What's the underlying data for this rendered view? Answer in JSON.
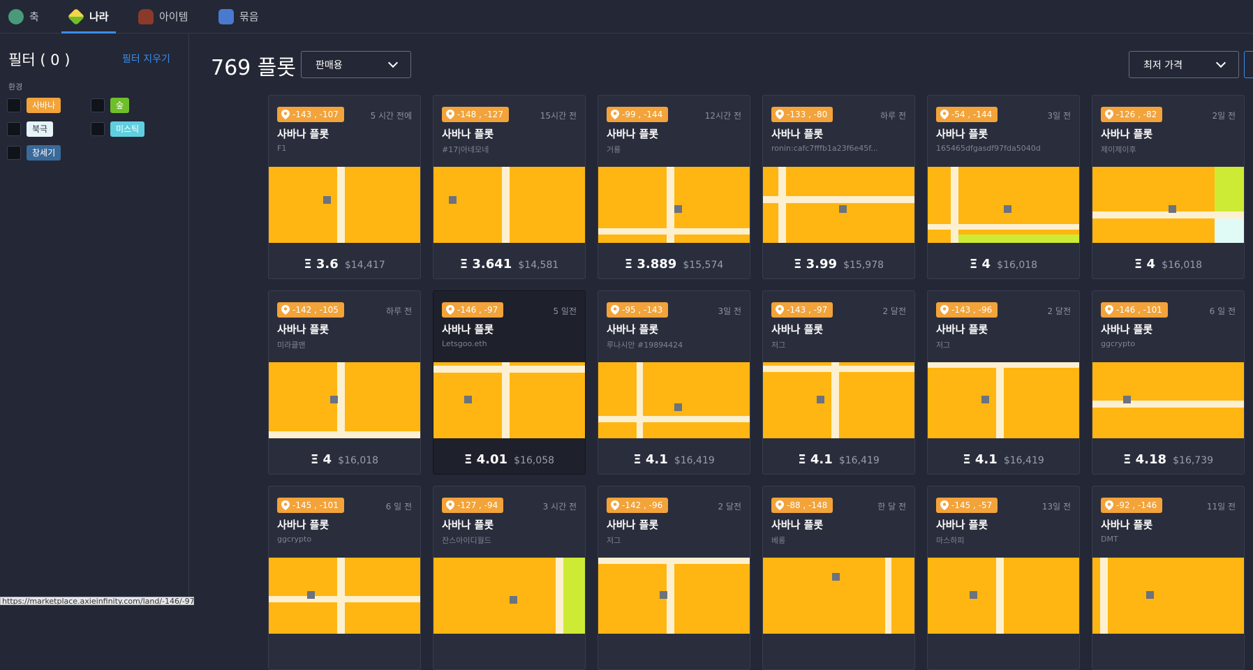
{
  "nav": {
    "tabs": [
      {
        "label": "축",
        "icon": "axie-icon",
        "color": "#4a9a7a"
      },
      {
        "label": "나라",
        "icon": "land-icon",
        "color": "#e6c13a",
        "active": true
      },
      {
        "label": "아이템",
        "icon": "item-icon",
        "color": "#8a3a2a"
      },
      {
        "label": "묶음",
        "icon": "bundle-icon",
        "color": "#4a7ad0"
      }
    ]
  },
  "sidebar": {
    "title": "필터 ( 0 )",
    "clear_label": "필터 지우기",
    "env_label": "환경",
    "envs": [
      {
        "label": "사바나",
        "bg": "#f2a33a",
        "fg": "#ffffff"
      },
      {
        "label": "숲",
        "bg": "#6fbf2a",
        "fg": "#ffffff"
      },
      {
        "label": "북극",
        "bg": "#e6f4f7",
        "fg": "#2a2d3c"
      },
      {
        "label": "미스틱",
        "bg": "#5fcfe0",
        "fg": "#ffffff"
      },
      {
        "label": "창세기",
        "bg": "#3a6a9a",
        "fg": "#ffffff"
      }
    ]
  },
  "main": {
    "count_title": "769 플롯",
    "sale_select": "판매용",
    "sort_select": "최저 가격"
  },
  "cards": [
    {
      "coord": "-143 , -107",
      "ago": "5 시간 전에",
      "title": "사바나 플롯",
      "owner": "F1",
      "eth": "Ξ 3.6",
      "usd": "$14,417"
    },
    {
      "coord": "-148 , -127",
      "ago": "15시간 전",
      "title": "사바나 플롯",
      "owner": "#17|아네모네",
      "eth": "Ξ 3.641",
      "usd": "$14,581"
    },
    {
      "coord": "-99 , -144",
      "ago": "12시간 전",
      "title": "사바나 플롯",
      "owner": "거룡",
      "eth": "Ξ 3.889",
      "usd": "$15,574"
    },
    {
      "coord": "-133 , -80",
      "ago": "하루 전",
      "title": "사바나 플롯",
      "owner": "ronin:cafc7fffb1a23f6e45f...",
      "eth": "Ξ 3.99",
      "usd": "$15,978"
    },
    {
      "coord": "-54 , -144",
      "ago": "3일 전",
      "title": "사바나 플롯",
      "owner": "165465dfgasdf97fda5040d",
      "eth": "Ξ 4",
      "usd": "$16,018"
    },
    {
      "coord": "-126 , -82",
      "ago": "2일 전",
      "title": "사바나 플롯",
      "owner": "제이제이후",
      "eth": "Ξ 4",
      "usd": "$16,018"
    },
    {
      "coord": "-142 , -105",
      "ago": "하루 전",
      "title": "사바나 플롯",
      "owner": "미라클맨",
      "eth": "Ξ 4",
      "usd": "$16,018"
    },
    {
      "coord": "-146 , -97",
      "ago": "5 일전",
      "title": "사바나 플롯",
      "owner": "Letsgoo.eth",
      "eth": "Ξ 4.01",
      "usd": "$16,058"
    },
    {
      "coord": "-95 , -143",
      "ago": "3일 전",
      "title": "사바나 플롯",
      "owner": "루나시안 #19894424",
      "eth": "Ξ 4.1",
      "usd": "$16,419"
    },
    {
      "coord": "-143 , -97",
      "ago": "2 달전",
      "title": "사바나 플롯",
      "owner": "저그",
      "eth": "Ξ 4.1",
      "usd": "$16,419"
    },
    {
      "coord": "-143 , -96",
      "ago": "2 달전",
      "title": "사바나 플롯",
      "owner": "저그",
      "eth": "Ξ 4.1",
      "usd": "$16,419"
    },
    {
      "coord": "-146 , -101",
      "ago": "6 일 전",
      "title": "사바나 플롯",
      "owner": "ggcrypto",
      "eth": "Ξ 4.18",
      "usd": "$16,739"
    },
    {
      "coord": "-145 , -101",
      "ago": "6 일 전",
      "title": "사바나 플롯",
      "owner": "ggcrypto",
      "eth": "",
      "usd": ""
    },
    {
      "coord": "-127 , -94",
      "ago": "3 시간 전",
      "title": "사바나 플롯",
      "owner": "잔스아이디월드",
      "eth": "",
      "usd": ""
    },
    {
      "coord": "-142 , -96",
      "ago": "2 달전",
      "title": "사바나 플롯",
      "owner": "저그",
      "eth": "",
      "usd": ""
    },
    {
      "coord": "-88 , -148",
      "ago": "한 달 전",
      "title": "사바나 플롯",
      "owner": "베롱",
      "eth": "",
      "usd": ""
    },
    {
      "coord": "-145 , -57",
      "ago": "13일 전",
      "title": "사바나 플롯",
      "owner": "마스하피",
      "eth": "",
      "usd": ""
    },
    {
      "coord": "-92 , -146",
      "ago": "11일 전",
      "title": "사바나 플롯",
      "owner": "DMT",
      "eth": "",
      "usd": ""
    }
  ],
  "colors": {
    "savannah": "#ffb612",
    "road": "#fdf0d0",
    "forest": "#cdeb34",
    "arctic": "#e0fbf5",
    "marker": "#6b7280"
  },
  "status_url": "https://marketplace.axieinfinity.com/land/-146/-97/"
}
